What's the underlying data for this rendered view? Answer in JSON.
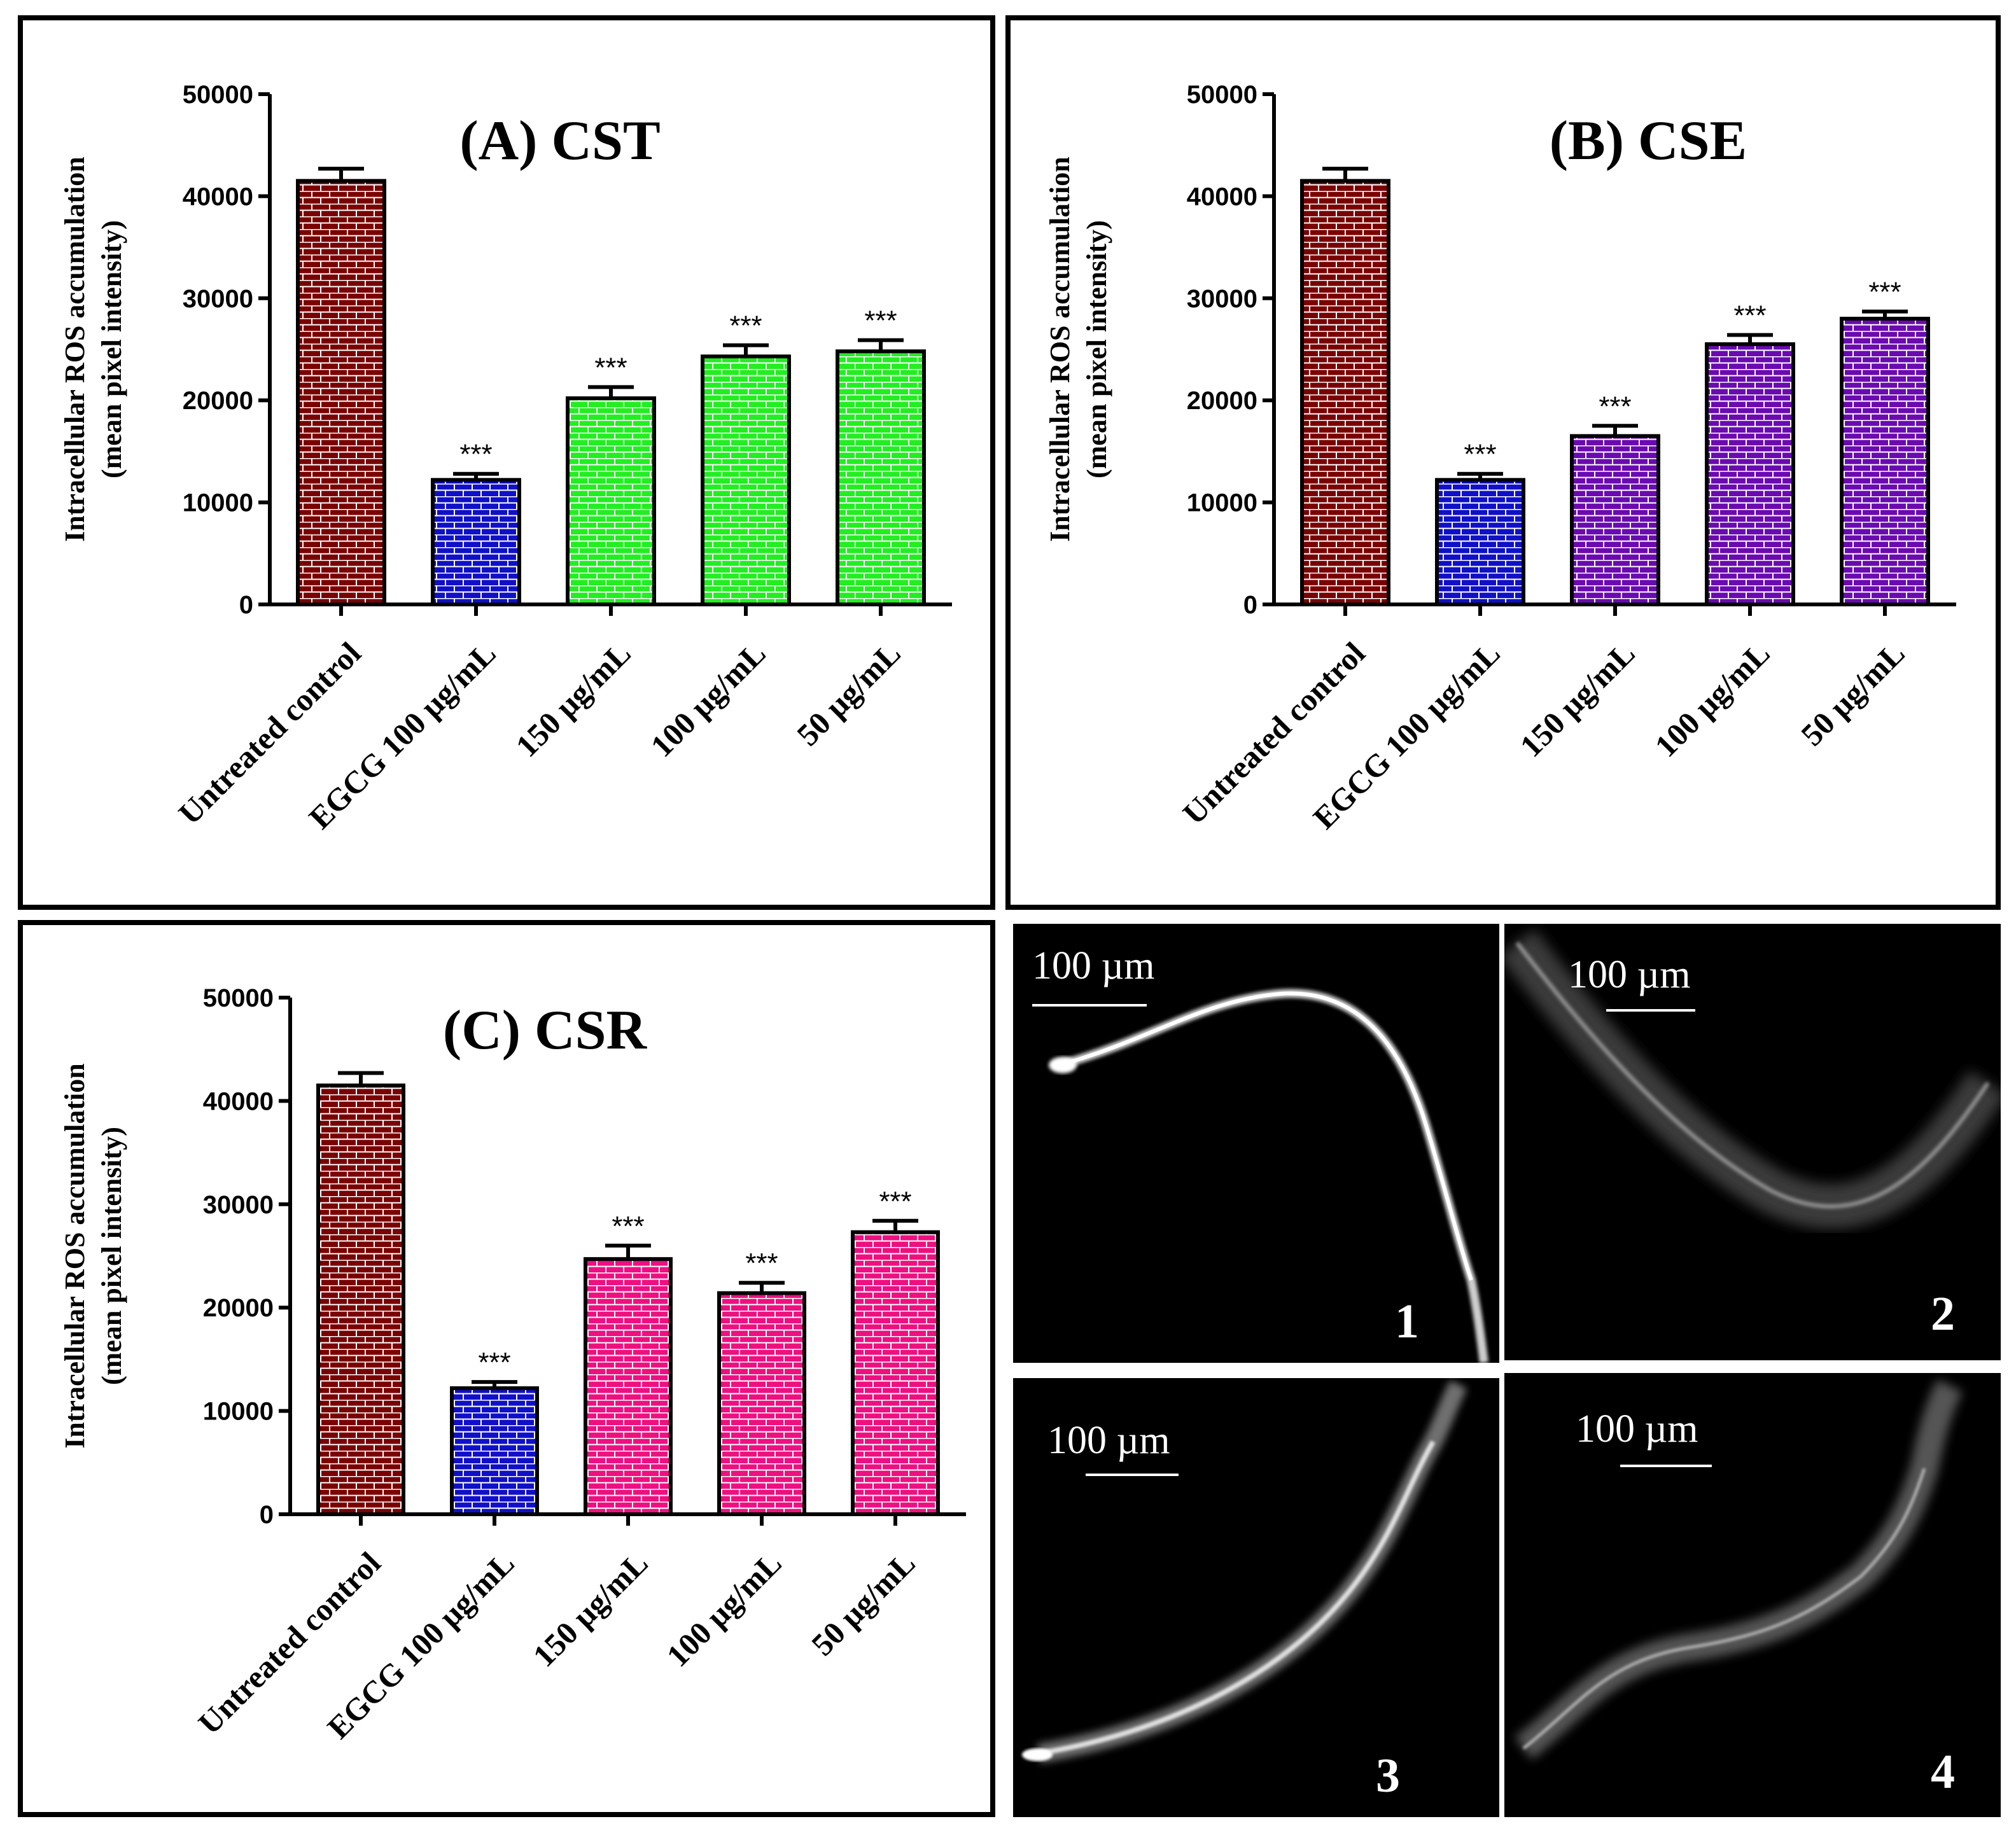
{
  "colors": {
    "control": "#7a0000",
    "egcg": "#1010c8",
    "cst": "#22ee22",
    "cse": "#6a0ab0",
    "csr": "#ee1080",
    "brick_line": "#ffffff"
  },
  "chart_data": [
    {
      "type": "bar",
      "panel": "A",
      "title": "(A) CST",
      "ylabel_line1": "Intracellular ROS accumulation",
      "ylabel_line2": "(mean pixel intensity)",
      "yticks": [
        "0",
        "10000",
        "20000",
        "30000",
        "40000",
        "50000"
      ],
      "ylim": [
        0,
        50000
      ],
      "categories": [
        "Untreated control",
        "EGCG 100 µg/mL",
        "150 µg/mL",
        "100 µg/mL",
        "50 µg/mL"
      ],
      "values": [
        41500,
        12200,
        20200,
        24300,
        24800
      ],
      "errors": [
        1200,
        600,
        1100,
        1100,
        1100
      ],
      "significance": [
        "",
        "***",
        "***",
        "***",
        "***"
      ],
      "bar_colors": [
        "#7a0000",
        "#1010c8",
        "#22ee22",
        "#22ee22",
        "#22ee22"
      ]
    },
    {
      "type": "bar",
      "panel": "B",
      "title": "(B) CSE",
      "ylabel_line1": "Intracellular ROS accumulation",
      "ylabel_line2": "(mean pixel intensity)",
      "yticks": [
        "0",
        "10000",
        "20000",
        "30000",
        "40000",
        "50000"
      ],
      "ylim": [
        0,
        50000
      ],
      "categories": [
        "Untreated control",
        "EGCG 100 µg/mL",
        "150 µg/mL",
        "100 µg/mL",
        "50 µg/mL"
      ],
      "values": [
        41500,
        12200,
        16500,
        25500,
        28000
      ],
      "errors": [
        1200,
        600,
        1000,
        900,
        700
      ],
      "significance": [
        "",
        "***",
        "***",
        "***",
        "***"
      ],
      "bar_colors": [
        "#7a0000",
        "#1010c8",
        "#6a0ab0",
        "#6a0ab0",
        "#6a0ab0"
      ]
    },
    {
      "type": "bar",
      "panel": "C",
      "title": "(C) CSR",
      "ylabel_line1": "Intracellular ROS accumulation",
      "ylabel_line2": "(mean pixel intensity)",
      "yticks": [
        "0",
        "10000",
        "20000",
        "30000",
        "40000",
        "50000"
      ],
      "ylim": [
        0,
        50000
      ],
      "categories": [
        "Untreated control",
        "EGCG 100 µg/mL",
        "150 µg/mL",
        "100 µg/mL",
        "50 µg/mL"
      ],
      "values": [
        41500,
        12200,
        24700,
        21400,
        27300
      ],
      "errors": [
        1200,
        600,
        1300,
        1000,
        1100
      ],
      "significance": [
        "",
        "***",
        "***",
        "***",
        "***"
      ],
      "bar_colors": [
        "#7a0000",
        "#1010c8",
        "#ee1080",
        "#ee1080",
        "#ee1080"
      ]
    }
  ],
  "micrographs": [
    {
      "number": "1",
      "scale_label": "100 µm"
    },
    {
      "number": "2",
      "scale_label": "100 µm"
    },
    {
      "number": "3",
      "scale_label": "100 µm"
    },
    {
      "number": "4",
      "scale_label": "100 µm"
    }
  ]
}
